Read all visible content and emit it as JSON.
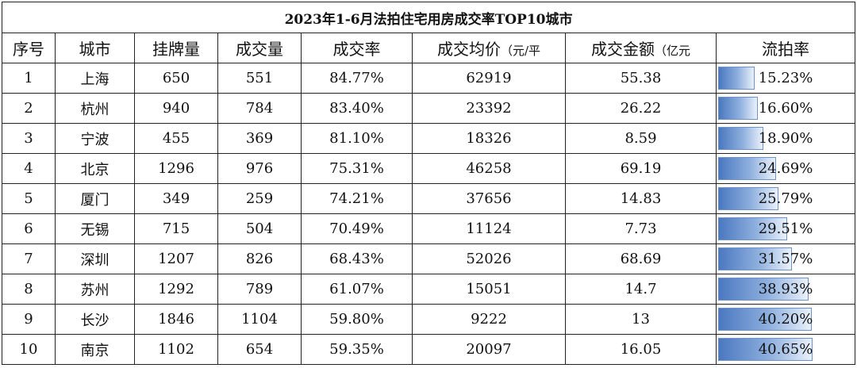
{
  "table": {
    "title": "2023年1-6月法拍住宅用房成交率TOP10城市",
    "headers": [
      "序号",
      "城市",
      "挂牌量",
      "成交量",
      "成交率",
      "成交均价",
      "（元/平",
      "成交金额",
      "（亿元",
      "流拍率"
    ],
    "rows": [
      [
        "1",
        "上海",
        "650",
        "551",
        "84.77%",
        "62919",
        "55.38",
        "15.23%"
      ],
      [
        "2",
        "杭州",
        "940",
        "784",
        "83.40%",
        "23392",
        "26.22",
        "16.60%"
      ],
      [
        "3",
        "宁波",
        "455",
        "369",
        "81.10%",
        "18326",
        "8.59",
        "18.90%"
      ],
      [
        "4",
        "北京",
        "1296",
        "976",
        "75.31%",
        "46258",
        "69.19",
        "24.69%"
      ],
      [
        "5",
        "厦门",
        "349",
        "259",
        "74.21%",
        "37656",
        "14.83",
        "25.79%"
      ],
      [
        "6",
        "无锡",
        "715",
        "504",
        "70.49%",
        "11124",
        "7.73",
        "29.51%"
      ],
      [
        "7",
        "深圳",
        "1207",
        "826",
        "68.43%",
        "52026",
        "68.69",
        "31.57%"
      ],
      [
        "8",
        "苏州",
        "1292",
        "789",
        "61.07%",
        "15051",
        "14.7",
        "38.93%"
      ],
      [
        "9",
        "长沙",
        "1846",
        "1104",
        "59.80%",
        "9222",
        "13",
        "40.20%"
      ],
      [
        "10",
        "南京",
        "1102",
        "654",
        "59.35%",
        "20097",
        "16.05",
        "40.65%"
      ]
    ],
    "flow_rate_values": [
      15.23,
      16.6,
      18.9,
      24.69,
      25.79,
      29.51,
      31.57,
      38.93,
      40.2,
      40.65
    ],
    "data_bar_color": "#4a78c0"
  }
}
